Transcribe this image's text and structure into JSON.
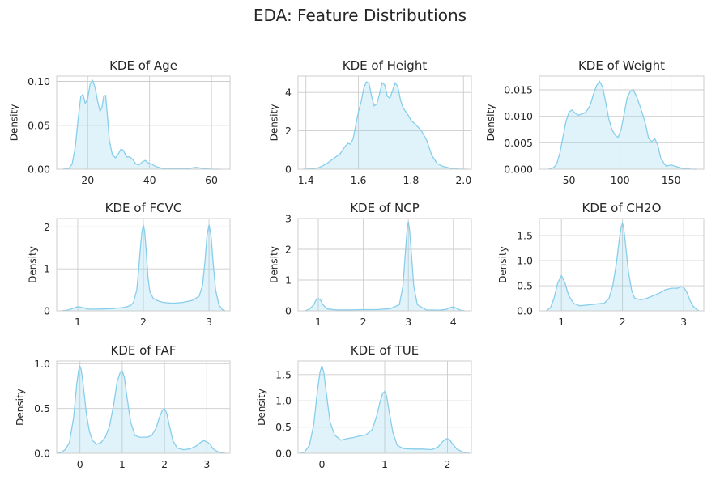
{
  "figure": {
    "title": "EDA: Feature Distributions",
    "colors": {
      "line": "#87ceeb",
      "fill": "#87ceeb",
      "grid": "#cccccc",
      "text": "#262626"
    }
  },
  "chart_data": [
    {
      "type": "area",
      "title": "KDE of Age",
      "xlabel": "",
      "ylabel": "Density",
      "xlim": [
        10,
        66
      ],
      "ylim": [
        0,
        0.106
      ],
      "xticks": [
        20,
        40,
        60
      ],
      "yticks": [
        0.0,
        0.05,
        0.1
      ],
      "xtick_labels": [
        "20",
        "40",
        "60"
      ],
      "ytick_labels": [
        "0.00",
        "0.05",
        "0.10"
      ],
      "grid": true,
      "series": [
        {
          "x": [
            12,
            14,
            15,
            16,
            17,
            17.8,
            18.5,
            19.2,
            20,
            20.8,
            21.6,
            22.4,
            23.2,
            24,
            24.6,
            25.2,
            25.8,
            26.4,
            27,
            28,
            29,
            30,
            30.8,
            31.6,
            32.6,
            33.6,
            34.6,
            35.6,
            36.6,
            37.6,
            38.6,
            39.6,
            40.6,
            42,
            44,
            47,
            50,
            53,
            55,
            57,
            60,
            63
          ],
          "y": [
            0,
            0.001,
            0.006,
            0.025,
            0.06,
            0.083,
            0.085,
            0.075,
            0.08,
            0.097,
            0.101,
            0.093,
            0.078,
            0.066,
            0.07,
            0.083,
            0.084,
            0.06,
            0.033,
            0.016,
            0.013,
            0.018,
            0.023,
            0.021,
            0.014,
            0.014,
            0.011,
            0.006,
            0.005,
            0.008,
            0.01,
            0.007,
            0.006,
            0.003,
            0.001,
            0.001,
            0.001,
            0.001,
            0.002,
            0.001,
            0,
            0
          ]
        }
      ]
    },
    {
      "type": "area",
      "title": "KDE of Height",
      "xlabel": "",
      "ylabel": "Density",
      "xlim": [
        1.37,
        2.03
      ],
      "ylim": [
        0,
        4.85
      ],
      "xticks": [
        1.4,
        1.6,
        1.8,
        2.0
      ],
      "yticks": [
        0,
        2,
        4
      ],
      "xtick_labels": [
        "1.4",
        "1.6",
        "1.8",
        "2.0"
      ],
      "ytick_labels": [
        "0",
        "2",
        "4"
      ],
      "grid": true,
      "series": [
        {
          "x": [
            1.39,
            1.42,
            1.45,
            1.48,
            1.51,
            1.53,
            1.55,
            1.56,
            1.57,
            1.58,
            1.59,
            1.6,
            1.61,
            1.62,
            1.63,
            1.64,
            1.65,
            1.66,
            1.67,
            1.68,
            1.69,
            1.7,
            1.71,
            1.72,
            1.73,
            1.74,
            1.75,
            1.76,
            1.77,
            1.78,
            1.79,
            1.8,
            1.82,
            1.84,
            1.86,
            1.88,
            1.9,
            1.92,
            1.95,
            1.98,
            2.01
          ],
          "y": [
            0,
            0.02,
            0.08,
            0.3,
            0.6,
            0.8,
            1.2,
            1.35,
            1.3,
            1.6,
            2.3,
            3.0,
            3.5,
            4.2,
            4.55,
            4.5,
            3.8,
            3.3,
            3.4,
            3.9,
            4.5,
            4.4,
            3.8,
            3.7,
            4.1,
            4.5,
            4.3,
            3.6,
            3.2,
            3.0,
            2.8,
            2.55,
            2.3,
            2.0,
            1.5,
            0.7,
            0.3,
            0.15,
            0.05,
            0.01,
            0
          ]
        }
      ]
    },
    {
      "type": "area",
      "title": "KDE of Weight",
      "xlabel": "",
      "ylabel": "Density",
      "xlim": [
        21,
        182
      ],
      "ylim": [
        0,
        0.0176
      ],
      "xticks": [
        50,
        100,
        150
      ],
      "yticks": [
        0.0,
        0.005,
        0.01,
        0.015
      ],
      "xtick_labels": [
        "50",
        "100",
        "150"
      ],
      "ytick_labels": [
        "0.000",
        "0.005",
        "0.010",
        "0.015"
      ],
      "grid": true,
      "series": [
        {
          "x": [
            30,
            35,
            38,
            41,
            44,
            47,
            50,
            53,
            56,
            59,
            62,
            65,
            68,
            71,
            74,
            77,
            80,
            83,
            86,
            89,
            92,
            95,
            98,
            101,
            104,
            107,
            110,
            113,
            116,
            119,
            122,
            125,
            128,
            131,
            134,
            137,
            140,
            145,
            150,
            155,
            160,
            165,
            170,
            175
          ],
          "y": [
            0,
            0.0003,
            0.001,
            0.003,
            0.006,
            0.009,
            0.0108,
            0.0112,
            0.0106,
            0.0102,
            0.0104,
            0.0106,
            0.0112,
            0.0122,
            0.0142,
            0.0158,
            0.0166,
            0.0155,
            0.0125,
            0.0095,
            0.0075,
            0.0065,
            0.006,
            0.0075,
            0.0105,
            0.0135,
            0.0147,
            0.015,
            0.0138,
            0.0122,
            0.0105,
            0.0085,
            0.0058,
            0.0052,
            0.0058,
            0.0045,
            0.002,
            0.0006,
            0.0008,
            0.0005,
            0.0002,
            0.0001,
            0,
            0
          ]
        }
      ]
    },
    {
      "type": "area",
      "title": "KDE of FCVC",
      "xlabel": "",
      "ylabel": "Density",
      "xlim": [
        0.68,
        3.32
      ],
      "ylim": [
        0,
        2.2
      ],
      "xticks": [
        1,
        2,
        3
      ],
      "yticks": [
        0,
        1,
        2
      ],
      "xtick_labels": [
        "1",
        "2",
        "3"
      ],
      "ytick_labels": [
        "0",
        "1",
        "2"
      ],
      "grid": true,
      "series": [
        {
          "x": [
            0.75,
            0.85,
            0.93,
            1.0,
            1.07,
            1.15,
            1.3,
            1.5,
            1.7,
            1.8,
            1.85,
            1.9,
            1.93,
            1.96,
            1.98,
            2.0,
            2.02,
            2.04,
            2.07,
            2.1,
            2.15,
            2.2,
            2.3,
            2.45,
            2.6,
            2.75,
            2.85,
            2.9,
            2.94,
            2.97,
            3.0,
            3.03,
            3.06,
            3.1,
            3.15,
            3.2,
            3.25
          ],
          "y": [
            0,
            0.02,
            0.06,
            0.1,
            0.08,
            0.04,
            0.04,
            0.05,
            0.08,
            0.12,
            0.2,
            0.5,
            1.0,
            1.6,
            1.9,
            2.05,
            1.9,
            1.5,
            0.8,
            0.45,
            0.3,
            0.25,
            0.2,
            0.18,
            0.2,
            0.25,
            0.35,
            0.6,
            1.2,
            1.8,
            2.05,
            1.8,
            1.2,
            0.5,
            0.15,
            0.03,
            0
          ]
        }
      ]
    },
    {
      "type": "area",
      "title": "KDE of NCP",
      "xlabel": "",
      "ylabel": "Density",
      "xlim": [
        0.55,
        4.4
      ],
      "ylim": [
        0,
        3.0
      ],
      "xticks": [
        1,
        2,
        3,
        4
      ],
      "yticks": [
        0,
        1,
        2,
        3
      ],
      "xtick_labels": [
        "1",
        "2",
        "3",
        "4"
      ],
      "ytick_labels": [
        "0",
        "1",
        "2",
        "3"
      ],
      "grid": true,
      "series": [
        {
          "x": [
            0.7,
            0.8,
            0.9,
            0.95,
            1.0,
            1.05,
            1.1,
            1.2,
            1.4,
            1.7,
            2.0,
            2.3,
            2.6,
            2.8,
            2.88,
            2.93,
            2.97,
            3.0,
            3.03,
            3.07,
            3.12,
            3.2,
            3.4,
            3.7,
            3.85,
            3.92,
            4.0,
            4.08,
            4.15,
            4.25
          ],
          "y": [
            0,
            0.05,
            0.2,
            0.35,
            0.4,
            0.35,
            0.2,
            0.06,
            0.03,
            0.03,
            0.04,
            0.04,
            0.07,
            0.2,
            0.8,
            1.8,
            2.6,
            2.9,
            2.6,
            1.8,
            0.8,
            0.2,
            0.03,
            0.02,
            0.05,
            0.1,
            0.13,
            0.08,
            0.02,
            0
          ]
        }
      ]
    },
    {
      "type": "area",
      "title": "KDE of CH2O",
      "xlabel": "",
      "ylabel": "Density",
      "xlim": [
        0.64,
        3.33
      ],
      "ylim": [
        0,
        1.84
      ],
      "xticks": [
        1,
        2,
        3
      ],
      "yticks": [
        0.0,
        0.5,
        1.0,
        1.5
      ],
      "xtick_labels": [
        "1",
        "2",
        "3"
      ],
      "ytick_labels": [
        "0.0",
        "0.5",
        "1.0",
        "1.5"
      ],
      "grid": true,
      "series": [
        {
          "x": [
            0.75,
            0.82,
            0.88,
            0.94,
            1.0,
            1.06,
            1.12,
            1.2,
            1.3,
            1.45,
            1.6,
            1.7,
            1.78,
            1.84,
            1.9,
            1.95,
            1.98,
            2.0,
            2.02,
            2.06,
            2.1,
            2.15,
            2.2,
            2.3,
            2.4,
            2.5,
            2.6,
            2.7,
            2.8,
            2.9,
            2.95,
            3.0,
            3.05,
            3.1,
            3.15,
            3.2,
            3.25
          ],
          "y": [
            0,
            0.06,
            0.25,
            0.55,
            0.7,
            0.55,
            0.3,
            0.15,
            0.1,
            0.12,
            0.14,
            0.15,
            0.25,
            0.5,
            0.95,
            1.45,
            1.68,
            1.75,
            1.65,
            1.2,
            0.75,
            0.4,
            0.25,
            0.22,
            0.25,
            0.3,
            0.35,
            0.42,
            0.45,
            0.45,
            0.48,
            0.47,
            0.38,
            0.22,
            0.1,
            0.04,
            0
          ]
        }
      ]
    },
    {
      "type": "area",
      "title": "KDE of FAF",
      "xlabel": "",
      "ylabel": "Density",
      "xlim": [
        -0.55,
        3.55
      ],
      "ylim": [
        0,
        1.03
      ],
      "xticks": [
        0,
        1,
        2,
        3
      ],
      "yticks": [
        0.0,
        0.5,
        1.0
      ],
      "xtick_labels": [
        "0",
        "1",
        "2",
        "3"
      ],
      "ytick_labels": [
        "0.0",
        "0.5",
        "1.0"
      ],
      "grid": true,
      "series": [
        {
          "x": [
            -0.55,
            -0.45,
            -0.35,
            -0.25,
            -0.15,
            -0.08,
            -0.03,
            0.0,
            0.03,
            0.08,
            0.15,
            0.22,
            0.3,
            0.4,
            0.5,
            0.6,
            0.7,
            0.8,
            0.88,
            0.95,
            1.0,
            1.05,
            1.12,
            1.2,
            1.3,
            1.4,
            1.5,
            1.6,
            1.7,
            1.8,
            1.88,
            1.95,
            2.0,
            2.05,
            2.12,
            2.2,
            2.3,
            2.45,
            2.6,
            2.75,
            2.85,
            2.92,
            3.0,
            3.08,
            3.15,
            3.25,
            3.35,
            3.45
          ],
          "y": [
            0,
            0.01,
            0.04,
            0.12,
            0.4,
            0.75,
            0.93,
            0.97,
            0.93,
            0.75,
            0.45,
            0.25,
            0.14,
            0.1,
            0.12,
            0.18,
            0.3,
            0.55,
            0.8,
            0.9,
            0.92,
            0.85,
            0.6,
            0.35,
            0.2,
            0.18,
            0.18,
            0.18,
            0.2,
            0.28,
            0.4,
            0.48,
            0.5,
            0.45,
            0.3,
            0.14,
            0.06,
            0.04,
            0.05,
            0.08,
            0.12,
            0.14,
            0.13,
            0.1,
            0.05,
            0.02,
            0.005,
            0
          ]
        }
      ]
    },
    {
      "type": "area",
      "title": "KDE of TUE",
      "xlabel": "",
      "ylabel": "Density",
      "xlim": [
        -0.38,
        2.38
      ],
      "ylim": [
        0,
        1.76
      ],
      "xticks": [
        0,
        1,
        2
      ],
      "yticks": [
        0.0,
        0.5,
        1.0,
        1.5
      ],
      "xtick_labels": [
        "0",
        "1",
        "2"
      ],
      "ytick_labels": [
        "0.0",
        "0.5",
        "1.0",
        "1.5"
      ],
      "grid": true,
      "series": [
        {
          "x": [
            -0.35,
            -0.28,
            -0.2,
            -0.13,
            -0.07,
            -0.03,
            0.0,
            0.03,
            0.07,
            0.13,
            0.2,
            0.3,
            0.4,
            0.5,
            0.6,
            0.7,
            0.8,
            0.87,
            0.93,
            0.97,
            1.0,
            1.03,
            1.07,
            1.13,
            1.2,
            1.3,
            1.45,
            1.6,
            1.75,
            1.85,
            1.92,
            1.97,
            2.0,
            2.03,
            2.08,
            2.15,
            2.25,
            2.35
          ],
          "y": [
            0,
            0.02,
            0.15,
            0.55,
            1.2,
            1.55,
            1.67,
            1.55,
            1.15,
            0.6,
            0.35,
            0.25,
            0.28,
            0.3,
            0.33,
            0.35,
            0.45,
            0.7,
            1.0,
            1.15,
            1.18,
            1.1,
            0.8,
            0.4,
            0.15,
            0.09,
            0.08,
            0.08,
            0.07,
            0.12,
            0.22,
            0.27,
            0.28,
            0.26,
            0.18,
            0.08,
            0.02,
            0
          ]
        }
      ]
    }
  ]
}
